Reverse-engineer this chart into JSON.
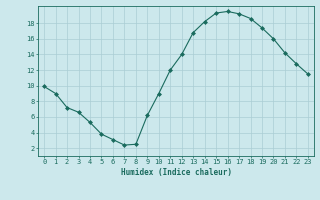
{
  "x": [
    0,
    1,
    2,
    3,
    4,
    5,
    6,
    7,
    8,
    9,
    10,
    11,
    12,
    13,
    14,
    15,
    16,
    17,
    18,
    19,
    20,
    21,
    22,
    23
  ],
  "y": [
    9.9,
    9.0,
    7.2,
    6.6,
    5.3,
    3.8,
    3.1,
    2.4,
    2.5,
    6.2,
    9.0,
    12.0,
    14.0,
    16.8,
    18.2,
    19.3,
    19.5,
    19.2,
    18.6,
    17.4,
    16.0,
    14.2,
    12.8,
    11.5
  ],
  "line_color": "#1a6b5e",
  "marker": "D",
  "marker_size": 2.0,
  "bg_color": "#cce8ec",
  "grid_color": "#aacdd4",
  "xlabel": "Humidex (Indice chaleur)",
  "xlim": [
    -0.5,
    23.5
  ],
  "ylim": [
    1.0,
    20.2
  ],
  "yticks": [
    2,
    4,
    6,
    8,
    10,
    12,
    14,
    16,
    18
  ],
  "xticks": [
    0,
    1,
    2,
    3,
    4,
    5,
    6,
    7,
    8,
    9,
    10,
    11,
    12,
    13,
    14,
    15,
    16,
    17,
    18,
    19,
    20,
    21,
    22,
    23
  ],
  "label_fontsize": 5.5,
  "tick_fontsize": 5.0
}
